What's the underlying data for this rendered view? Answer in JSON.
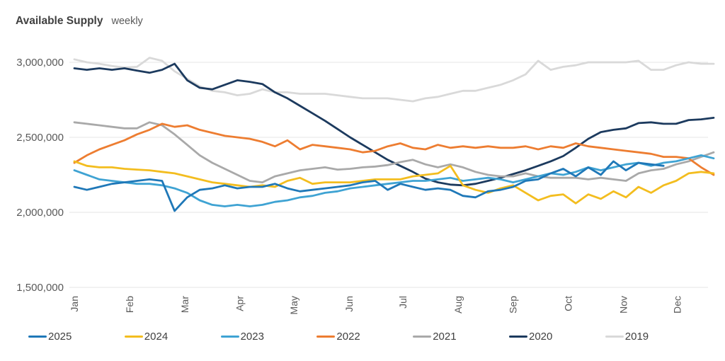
{
  "title": {
    "main": "Available Supply",
    "subtitle": "weekly"
  },
  "colors": {
    "c2025": "#1F78B8",
    "c2024": "#F3BD1F",
    "c2023": "#3FA3D3",
    "c2022": "#ED7D31",
    "c2021": "#A9A9A9",
    "c2020": "#1C3A5E",
    "c2019": "#D9D9D9",
    "gridline": "#E4E4E4",
    "axis_text": "#595959",
    "legend_text": "#404040"
  },
  "legend": {
    "position": "bottom",
    "items": [
      {
        "label": "2025",
        "color": "#1F78B8"
      },
      {
        "label": "2024",
        "color": "#F3BD1F"
      },
      {
        "label": "2023",
        "color": "#3FA3D3"
      },
      {
        "label": "2022",
        "color": "#ED7D31"
      },
      {
        "label": "2021",
        "color": "#A9A9A9"
      },
      {
        "label": "2020",
        "color": "#1C3A5E"
      },
      {
        "label": "2019",
        "color": "#D9D9D9"
      }
    ]
  },
  "chart_data": {
    "type": "line",
    "title": "Available Supply",
    "subtitle": "weekly",
    "x_unit": "week",
    "x_axis": {
      "labels": [
        "Jan",
        "Feb",
        "Mar",
        "Apr",
        "May",
        "Jun",
        "Jul",
        "Aug",
        "Sep",
        "Oct",
        "Nov",
        "Dec"
      ]
    },
    "y_axis": {
      "min": 1500000,
      "max": 3000000,
      "tick_values": [
        3000000,
        2500000,
        2000000,
        1500000
      ],
      "tick_labels": [
        "3,000,000",
        "2,500,000",
        "2,000,000",
        "1,500,000"
      ],
      "grid": true
    },
    "legend_position": "bottom",
    "series": [
      {
        "name": "2025",
        "color": "#1F78B8",
        "values": [
          2170000,
          2150000,
          2170000,
          2190000,
          2200000,
          2210000,
          2220000,
          2210000,
          2010000,
          2100000,
          2150000,
          2160000,
          2180000,
          2160000,
          2170000,
          2170000,
          2190000,
          2160000,
          2140000,
          2150000,
          2160000,
          2170000,
          2180000,
          2200000,
          2210000,
          2150000,
          2190000,
          2170000,
          2150000,
          2160000,
          2150000,
          2110000,
          2100000,
          2140000,
          2150000,
          2170000,
          2210000,
          2220000,
          2260000,
          2290000,
          2240000,
          2300000,
          2250000,
          2340000,
          2280000,
          2330000,
          2320000,
          2310000
        ]
      },
      {
        "name": "2024",
        "color": "#F3BD1F",
        "values": [
          2340000,
          2310000,
          2300000,
          2300000,
          2290000,
          2285000,
          2280000,
          2270000,
          2260000,
          2240000,
          2220000,
          2200000,
          2190000,
          2180000,
          2170000,
          2180000,
          2170000,
          2210000,
          2230000,
          2190000,
          2200000,
          2200000,
          2200000,
          2210000,
          2220000,
          2220000,
          2220000,
          2240000,
          2250000,
          2260000,
          2310000,
          2180000,
          2150000,
          2130000,
          2160000,
          2180000,
          2130000,
          2080000,
          2110000,
          2120000,
          2060000,
          2120000,
          2090000,
          2140000,
          2100000,
          2170000,
          2130000,
          2180000,
          2210000,
          2260000,
          2270000,
          2260000
        ]
      },
      {
        "name": "2023",
        "color": "#3FA3D3",
        "values": [
          2280000,
          2250000,
          2220000,
          2210000,
          2200000,
          2190000,
          2190000,
          2180000,
          2160000,
          2130000,
          2080000,
          2050000,
          2040000,
          2050000,
          2040000,
          2050000,
          2070000,
          2080000,
          2100000,
          2110000,
          2130000,
          2140000,
          2160000,
          2170000,
          2180000,
          2190000,
          2200000,
          2210000,
          2210000,
          2220000,
          2230000,
          2210000,
          2220000,
          2230000,
          2220000,
          2200000,
          2220000,
          2240000,
          2260000,
          2250000,
          2270000,
          2300000,
          2280000,
          2300000,
          2320000,
          2330000,
          2310000,
          2330000,
          2340000,
          2360000,
          2380000,
          2360000
        ]
      },
      {
        "name": "2022",
        "color": "#ED7D31",
        "values": [
          2330000,
          2380000,
          2420000,
          2450000,
          2480000,
          2520000,
          2550000,
          2590000,
          2570000,
          2580000,
          2550000,
          2530000,
          2510000,
          2500000,
          2490000,
          2470000,
          2440000,
          2480000,
          2420000,
          2450000,
          2440000,
          2430000,
          2420000,
          2400000,
          2410000,
          2440000,
          2460000,
          2430000,
          2420000,
          2450000,
          2430000,
          2440000,
          2430000,
          2440000,
          2430000,
          2430000,
          2440000,
          2420000,
          2440000,
          2430000,
          2460000,
          2440000,
          2430000,
          2420000,
          2410000,
          2400000,
          2390000,
          2370000,
          2370000,
          2360000,
          2300000,
          2250000
        ]
      },
      {
        "name": "2021",
        "color": "#A9A9A9",
        "values": [
          2600000,
          2590000,
          2580000,
          2570000,
          2560000,
          2560000,
          2600000,
          2580000,
          2520000,
          2450000,
          2380000,
          2330000,
          2290000,
          2250000,
          2210000,
          2200000,
          2240000,
          2260000,
          2280000,
          2290000,
          2300000,
          2285000,
          2290000,
          2300000,
          2305000,
          2315000,
          2335000,
          2350000,
          2320000,
          2300000,
          2320000,
          2300000,
          2270000,
          2250000,
          2240000,
          2240000,
          2260000,
          2240000,
          2230000,
          2230000,
          2230000,
          2220000,
          2230000,
          2220000,
          2210000,
          2260000,
          2280000,
          2290000,
          2320000,
          2340000,
          2370000,
          2400000
        ]
      },
      {
        "name": "2020",
        "color": "#1C3A5E",
        "values": [
          2960000,
          2950000,
          2960000,
          2950000,
          2960000,
          2945000,
          2930000,
          2950000,
          2990000,
          2880000,
          2830000,
          2820000,
          2850000,
          2880000,
          2870000,
          2855000,
          2800000,
          2760000,
          2710000,
          2660000,
          2610000,
          2555000,
          2500000,
          2450000,
          2400000,
          2350000,
          2310000,
          2270000,
          2225000,
          2200000,
          2185000,
          2180000,
          2190000,
          2210000,
          2230000,
          2255000,
          2280000,
          2310000,
          2340000,
          2375000,
          2430000,
          2490000,
          2535000,
          2550000,
          2560000,
          2595000,
          2600000,
          2590000,
          2590000,
          2615000,
          2620000,
          2630000
        ]
      },
      {
        "name": "2019",
        "color": "#D9D9D9",
        "values": [
          3020000,
          3000000,
          2990000,
          2975000,
          2965000,
          2970000,
          3030000,
          3010000,
          2940000,
          2890000,
          2840000,
          2810000,
          2800000,
          2780000,
          2790000,
          2820000,
          2800000,
          2800000,
          2790000,
          2790000,
          2790000,
          2780000,
          2770000,
          2760000,
          2760000,
          2760000,
          2750000,
          2740000,
          2760000,
          2770000,
          2790000,
          2810000,
          2810000,
          2830000,
          2850000,
          2880000,
          2920000,
          3010000,
          2950000,
          2970000,
          2980000,
          3000000,
          3000000,
          3000000,
          3000000,
          3010000,
          2950000,
          2950000,
          2980000,
          3000000,
          2990000,
          2990000
        ]
      }
    ]
  }
}
